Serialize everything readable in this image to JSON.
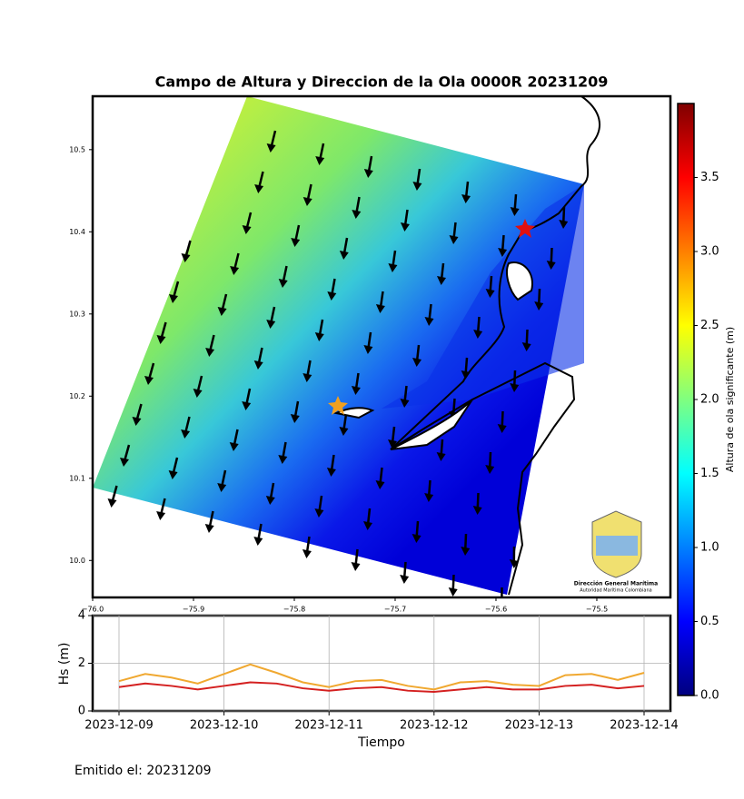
{
  "chart_data": [
    {
      "type": "map",
      "title": "Campo de Altura y Direccion de la Ola 0000R 20231209",
      "xlim": [
        -76.0,
        -75.427
      ],
      "ylim": [
        9.955,
        10.565
      ],
      "xticks": [
        {
          "value": -76.0,
          "label": "−76.0"
        },
        {
          "value": -75.9,
          "label": "−75.9"
        },
        {
          "value": -75.8,
          "label": "−75.8"
        },
        {
          "value": -75.7,
          "label": "−75.7"
        },
        {
          "value": -75.6,
          "label": "−75.6"
        },
        {
          "value": -75.5,
          "label": "−75.5"
        }
      ],
      "yticks": [
        {
          "value": 10.0,
          "label": "10.0"
        },
        10.1,
        10.2,
        10.3,
        10.4,
        10.5
      ],
      "colorbar": {
        "label": "Altura de ola significante (m)",
        "lim": [
          0,
          4.0
        ],
        "ticks": [
          {
            "value": 0,
            "label": "0.0"
          },
          0.5,
          {
            "value": 1,
            "label": "1.0"
          },
          1.5,
          {
            "value": 2,
            "label": "2.0"
          },
          2.5,
          {
            "value": 3,
            "label": "3.0"
          },
          3.5
        ]
      },
      "logo": {
        "name": "Dirección General Marítima",
        "subtitle": "Autoridad Marítima Colombiana"
      }
    },
    {
      "type": "line",
      "xlabel": "Tiempo",
      "ylabel": "Hs (m)",
      "xticks": [
        "2023-12-09",
        "2023-12-10",
        "2023-12-11",
        "2023-12-12",
        "2023-12-13",
        "2023-12-14"
      ],
      "ylim": [
        0,
        4
      ],
      "yticks": [
        0,
        2,
        4
      ],
      "grid": true,
      "series": [
        {
          "color": "#f0a830",
          "values": [
            1.25,
            1.55,
            1.4,
            1.15,
            1.55,
            1.95,
            1.6,
            1.2,
            1.0,
            1.25,
            1.3,
            1.05,
            0.9,
            1.2,
            1.25,
            1.1,
            1.05,
            1.5,
            1.55,
            1.3,
            1.6
          ]
        },
        {
          "color": "#d42020",
          "values": [
            1.0,
            1.15,
            1.05,
            0.9,
            1.05,
            1.2,
            1.15,
            0.95,
            0.85,
            0.95,
            1.0,
            0.85,
            0.8,
            0.9,
            1.0,
            0.9,
            0.9,
            1.05,
            1.1,
            0.95,
            1.05
          ]
        }
      ]
    }
  ],
  "footer": "Emitido el: 20231209"
}
